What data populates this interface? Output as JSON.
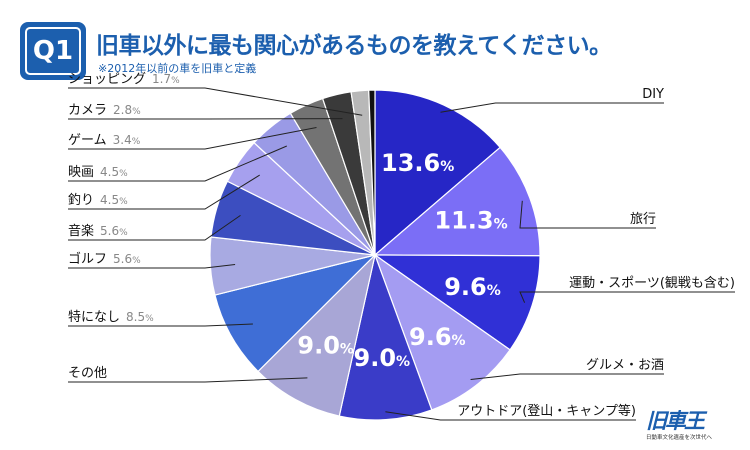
{
  "header": {
    "badge": "Q1",
    "title": "旧車以外に最も関心があるものを教えてください。",
    "note": "※2012年以前の車を旧車と定義"
  },
  "logo": {
    "text": "旧車王",
    "tagline": "日動車文化遺産を次世代へ"
  },
  "chart_data": {
    "type": "pie",
    "title": "旧車以外に最も関心があるものを教えてください。",
    "unit": "%",
    "start": "12 o'clock, clockwise",
    "slices": [
      {
        "label": "DIY",
        "value": 13.6,
        "display": "13.6",
        "color": "#2626c6",
        "side": "right"
      },
      {
        "label": "旅行",
        "value": 11.3,
        "display": "11.3",
        "color": "#7b6ef6",
        "side": "right"
      },
      {
        "label": "運動・スポーツ(観戦も含む)",
        "value": 9.6,
        "display": "9.6",
        "color": "#3030d6",
        "side": "right"
      },
      {
        "label": "グルメ・お酒",
        "value": 9.6,
        "display": "9.6",
        "color": "#a49cf2",
        "side": "right"
      },
      {
        "label": "アウトドア(登山・キャンプ等)",
        "value": 9.0,
        "display": "9.0",
        "color": "#3a3cc8",
        "side": "right"
      },
      {
        "label": "その他",
        "value": 9.0,
        "display": "9.0",
        "color": "#a8a6d6",
        "side": "left"
      },
      {
        "label": "特になし",
        "value": 8.5,
        "display": "8.5",
        "color": "#3f6ed6",
        "side": "left"
      },
      {
        "label": "ゴルフ",
        "value": 5.6,
        "display": "5.6",
        "color": "#a8aae2",
        "side": "left"
      },
      {
        "label": "音楽",
        "value": 5.6,
        "display": "5.6",
        "color": "#3c4ec0",
        "side": "left"
      },
      {
        "label": "釣り",
        "value": 4.5,
        "display": "4.5",
        "color": "#a6a0ee",
        "side": "left"
      },
      {
        "label": "映画",
        "value": 4.5,
        "display": "4.5",
        "color": "#9a9ae6",
        "side": "left"
      },
      {
        "label": "ゲーム",
        "value": 3.4,
        "display": "3.4",
        "color": "#737373",
        "side": "left"
      },
      {
        "label": "カメラ",
        "value": 2.8,
        "display": "2.8",
        "color": "#3a3a3a",
        "side": "left"
      },
      {
        "label": "ショッピング",
        "value": 1.7,
        "display": "1.7",
        "color": "#b8b8b8",
        "side": "left"
      },
      {
        "label": "",
        "value": 0.6,
        "display": "",
        "color": "#111111",
        "side": "none"
      }
    ]
  }
}
